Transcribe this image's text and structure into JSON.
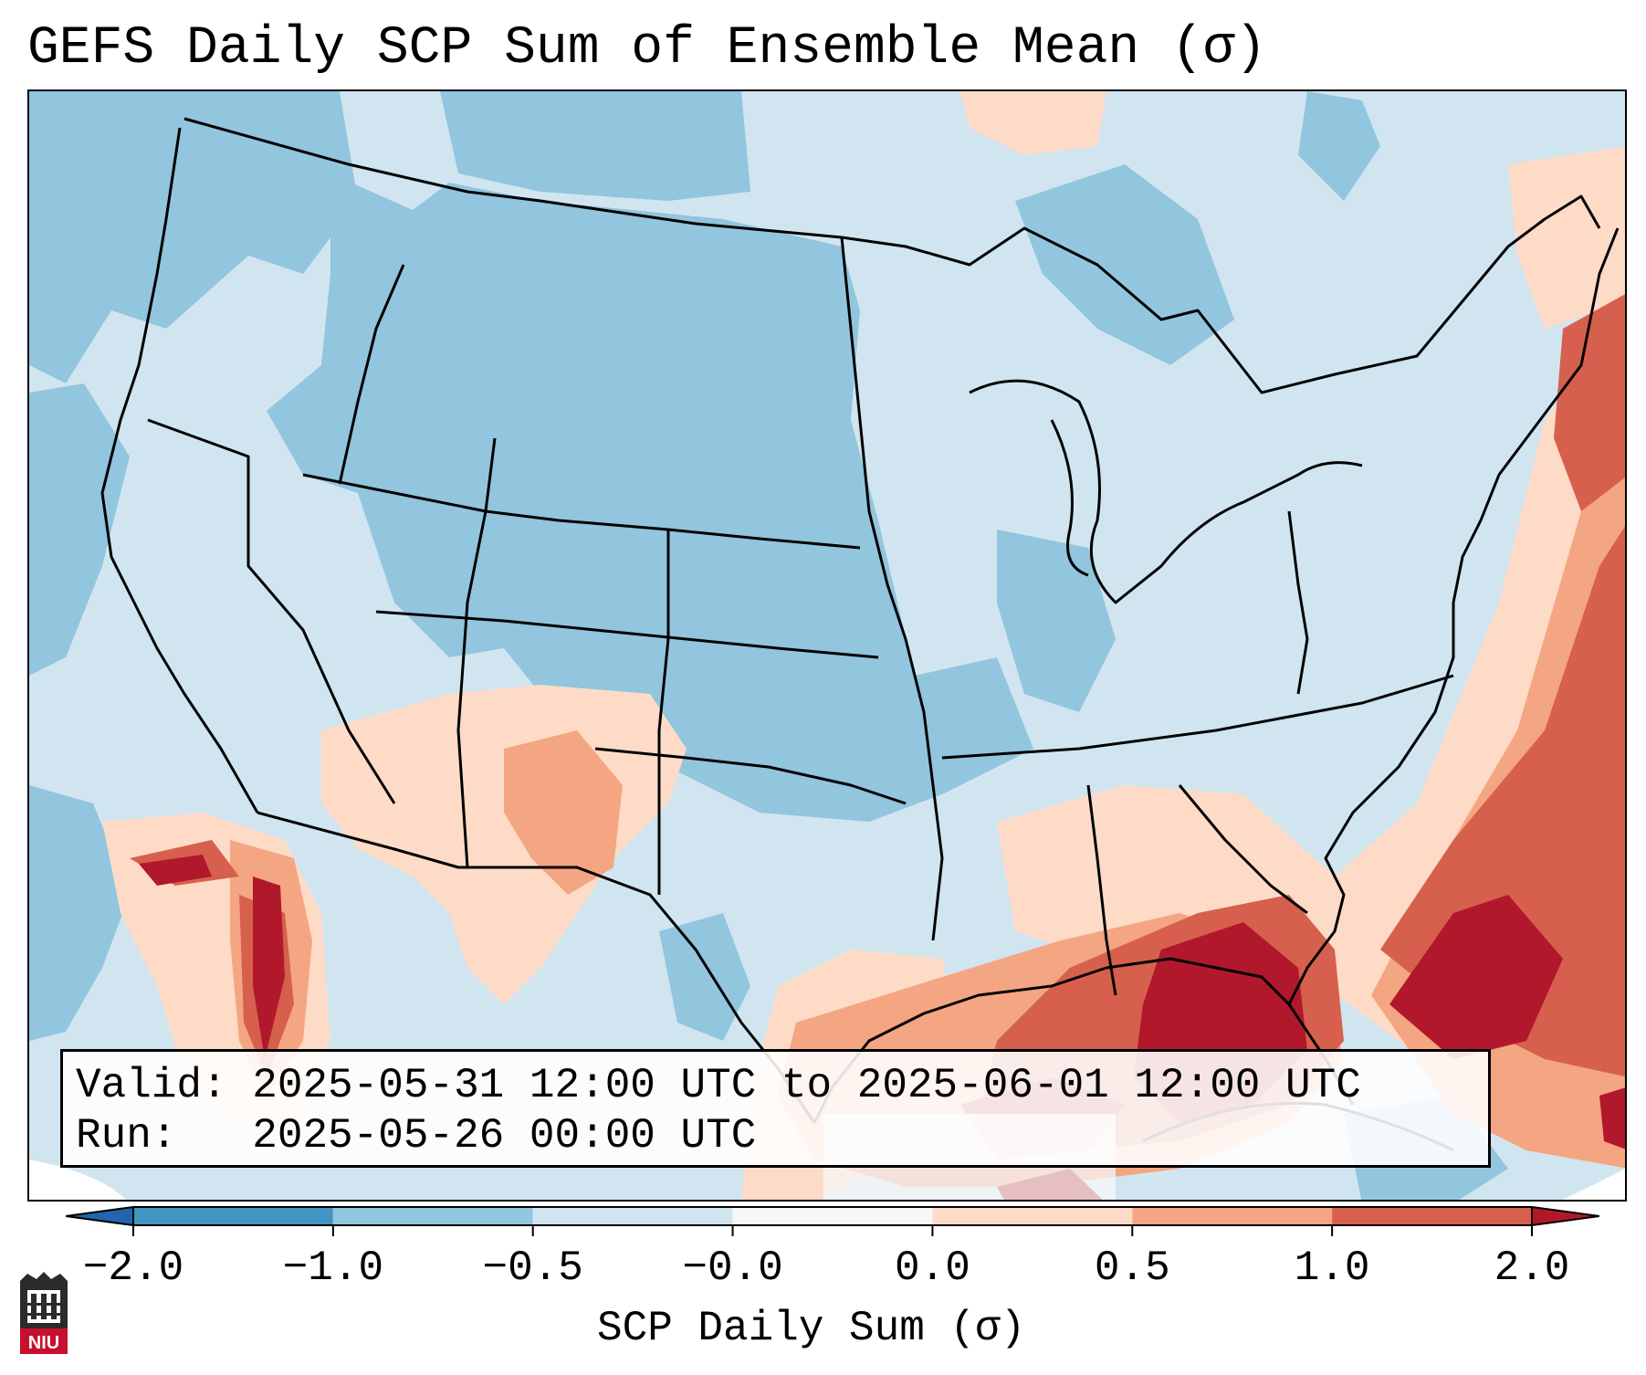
{
  "title": "GEFS Daily SCP Sum of Ensemble Mean (σ)",
  "info": {
    "valid_line": "Valid: 2025-05-31 12:00 UTC to 2025-06-01 12:00 UTC",
    "run_line": "Run:   2025-05-26 00:00 UTC"
  },
  "colorbar": {
    "label": "SCP Daily Sum (σ)",
    "ticks": [
      "−2.0",
      "−1.0",
      "−0.5",
      "−0.0",
      "0.0",
      "0.5",
      "1.0",
      "2.0"
    ],
    "bins": [
      {
        "range": "< -2.0",
        "color": "#2166ac"
      },
      {
        "range": "-2.0 to -1.0",
        "color": "#4393c3"
      },
      {
        "range": "-1.0 to -0.5",
        "color": "#92c5de"
      },
      {
        "range": "-0.5 to -0.0",
        "color": "#d1e5f0"
      },
      {
        "range": "-0.0 to 0.0",
        "color": "#f7f7f7"
      },
      {
        "range": "0.0 to 0.5",
        "color": "#fddbc7"
      },
      {
        "range": "0.5 to 1.0",
        "color": "#f4a582"
      },
      {
        "range": "1.0 to 2.0",
        "color": "#d6604d"
      },
      {
        "range": "> 2.0",
        "color": "#b2182b"
      }
    ],
    "extend": "both"
  },
  "map": {
    "projection": "Lambert conformal, CONUS",
    "field": "SCP daily sum standardized anomaly",
    "regions": [
      {
        "area": "Northern Plains / Rockies",
        "category": "-1.0 to -0.5"
      },
      {
        "area": "Pacific Northwest",
        "category": "-1.0 to -0.5"
      },
      {
        "area": "Great Lakes / Midwest",
        "category": "-0.5 to -0.0"
      },
      {
        "area": "Southwest / New Mexico",
        "category": "0.0 to 1.0"
      },
      {
        "area": "Baja California / Gulf of California",
        "category": "1.0 to > 2.0"
      },
      {
        "area": "Gulf of Mexico / Florida",
        "category": "1.0 to > 2.0"
      },
      {
        "area": "Western Atlantic / East Coast",
        "category": "0.5 to > 2.0"
      }
    ]
  },
  "logo": {
    "text": "NIU",
    "color": "#c8102e"
  }
}
